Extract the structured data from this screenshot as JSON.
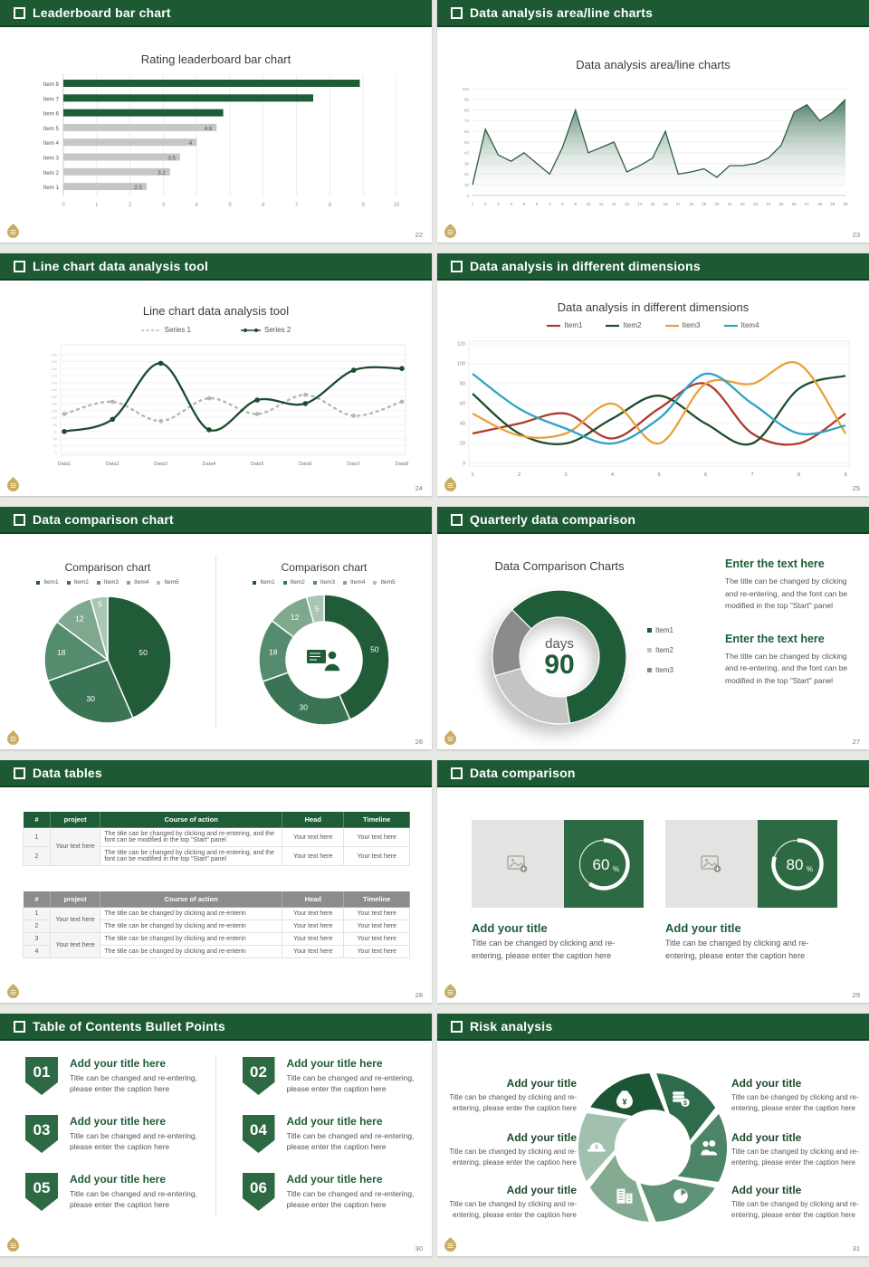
{
  "page": {
    "background": "#e8e8e5"
  },
  "theme": {
    "header_green": "#1d5a34",
    "accent_green": "#1f5c38",
    "mid_green": "#2d6a43",
    "gray_bar": "#c6c6c6",
    "gold_logo": "#c9ad62",
    "header_icon": "checkbox-square-icon"
  },
  "slides": [
    {
      "header": "Leaderboard bar chart",
      "page_number": "22",
      "chart_data": {
        "type": "bar",
        "orientation": "horizontal",
        "title": "Rating leaderboard bar chart",
        "categories": [
          "Item 1",
          "Item 2",
          "Item 3",
          "Item 4",
          "Item 5",
          "Item 6",
          "Item 7",
          "Item 8"
        ],
        "values": [
          2.5,
          3.2,
          3.5,
          4,
          4.6,
          4.8,
          7.5,
          8.9
        ],
        "value_labels": [
          "2.5",
          "3.2",
          "3.5",
          "4",
          "4.6",
          "",
          "",
          ""
        ],
        "bar_colors": [
          "#c6c6c6",
          "#c6c6c6",
          "#c6c6c6",
          "#c6c6c6",
          "#c6c6c6",
          "#1f5c38",
          "#1f5c38",
          "#1f5c38"
        ],
        "xlim": [
          0,
          10
        ],
        "xticks": [
          0,
          1,
          2,
          3,
          4,
          5,
          6,
          7,
          8,
          9,
          10
        ],
        "grid": true
      }
    },
    {
      "header": "Data analysis area/line charts",
      "page_number": "23",
      "chart_data": {
        "type": "area",
        "title": "Data analysis area/line charts",
        "x": [
          1,
          2,
          3,
          4,
          5,
          6,
          7,
          8,
          9,
          10,
          11,
          12,
          13,
          14,
          15,
          16,
          17,
          18,
          19,
          20,
          21,
          22,
          23,
          24,
          25,
          26,
          27,
          28,
          29,
          30
        ],
        "values": [
          10,
          62,
          38,
          32,
          40,
          30,
          20,
          45,
          80,
          40,
          45,
          50,
          22,
          28,
          35,
          60,
          20,
          22,
          25,
          17,
          28,
          28,
          30,
          35,
          47,
          78,
          85,
          70,
          78,
          90
        ],
        "ylim": [
          0,
          100
        ],
        "yticks": [
          0,
          10,
          20,
          30,
          40,
          50,
          60,
          70,
          80,
          90,
          100
        ],
        "line_color": "#2d5f41",
        "grid": true
      }
    },
    {
      "header": "Line chart data analysis tool",
      "page_number": "24",
      "chart_data": {
        "type": "line",
        "title": "Line chart data analysis tool",
        "categories": [
          "Data1",
          "Data2",
          "Data3",
          "Data4",
          "Data5",
          "Data6",
          "Data7",
          "Data8"
        ],
        "ylim": [
          0,
          300
        ],
        "yticks": [
          0,
          20,
          40,
          60,
          80,
          100,
          120,
          140,
          160,
          180,
          200,
          220,
          240,
          260,
          280
        ],
        "legend_position": "top",
        "series": [
          {
            "name": "Series 1",
            "color": "#b5b5b5",
            "dash": true,
            "markers": true,
            "values": [
              110,
              145,
              90,
              155,
              110,
              165,
              105,
              145
            ]
          },
          {
            "name": "Series 2",
            "color": "#1d4b2e",
            "dash": false,
            "markers": true,
            "values": [
              60,
              95,
              255,
              65,
              150,
              140,
              235,
              240
            ]
          }
        ]
      }
    },
    {
      "header": "Data analysis in different dimensions",
      "page_number": "25",
      "chart_data": {
        "type": "line",
        "title": "Data analysis in different dimensions",
        "x": [
          1,
          2,
          3,
          4,
          5,
          6,
          7,
          8,
          9
        ],
        "ylim": [
          0,
          120
        ],
        "yticks": [
          0,
          20,
          40,
          60,
          80,
          100,
          120
        ],
        "legend_position": "top",
        "series": [
          {
            "name": "Item1",
            "color": "#b03a2e",
            "values": [
              30,
              40,
              50,
              25,
              55,
              80,
              30,
              20,
              50
            ]
          },
          {
            "name": "Item2",
            "color": "#1e4d2b",
            "values": [
              70,
              30,
              20,
              45,
              68,
              40,
              20,
              75,
              88
            ]
          },
          {
            "name": "Item3",
            "color": "#e9a13b",
            "values": [
              50,
              28,
              30,
              60,
              20,
              80,
              80,
              100,
              30
            ]
          },
          {
            "name": "Item4",
            "color": "#2fa3c2",
            "values": [
              90,
              55,
              35,
              20,
              45,
              90,
              60,
              30,
              38
            ]
          }
        ]
      }
    },
    {
      "header": "Data comparison chart",
      "page_number": "26",
      "left": {
        "title": "Comparison chart",
        "chart_data": {
          "type": "pie",
          "labels": [
            "Item1",
            "Item2",
            "Item3",
            "Item4",
            "Item5"
          ],
          "values": [
            50,
            30,
            18,
            12,
            5
          ],
          "colors": [
            "#215b38",
            "#3a7454",
            "#568c6e",
            "#7fa98f",
            "#a9c5b3"
          ],
          "legend_position": "top"
        }
      },
      "right": {
        "title": "Comparison chart",
        "center_icon": "presenter-icon",
        "chart_data": {
          "type": "donut",
          "labels": [
            "Item1",
            "Item2",
            "Item3",
            "Item4",
            "Item5"
          ],
          "values": [
            50,
            30,
            18,
            12,
            5
          ],
          "colors": [
            "#215b38",
            "#3a7454",
            "#568c6e",
            "#7fa98f",
            "#a9c5b3"
          ],
          "legend_position": "top"
        }
      }
    },
    {
      "header": "Quarterly data comparison",
      "page_number": "27",
      "chart_title": "Data Comparison Charts",
      "chart_data": {
        "type": "donut",
        "labels": [
          "Item1",
          "Item2",
          "Item3"
        ],
        "values": [
          60,
          23,
          17
        ],
        "colors": [
          "#1f5c38",
          "#c4c4c4",
          "#8a8a8a"
        ],
        "center_top": "days",
        "center_value": "90",
        "legend_position": "right"
      },
      "blocks": [
        {
          "heading": "Enter the text here",
          "body": "The title can be changed by clicking and re-entering, and the font can be modified in the top \"Start\" panel"
        },
        {
          "heading": "Enter the text here",
          "body": "The title can be changed by clicking and re-entering, and the font can be modified in the top \"Start\" panel"
        }
      ]
    },
    {
      "header": "Data tables",
      "page_number": "28",
      "table1": {
        "columns": [
          "#",
          "project",
          "Course of action",
          "Head",
          "Timeline"
        ],
        "project_label": "Your text here",
        "rows": [
          {
            "num": "1",
            "course": "The title can be changed by clicking and re-entering, and the font can be modified in the top \"Start\" panel",
            "head": "Your text here",
            "timeline": "Your text here"
          },
          {
            "num": "2",
            "course": "The title can be changed by clicking and re-entering, and the font can be modified in the top \"Start\" panel",
            "head": "Your text here",
            "timeline": "Your text here"
          }
        ]
      },
      "table2": {
        "columns": [
          "#",
          "project",
          "Course of action",
          "Head",
          "Timeline"
        ],
        "project_labels": [
          "Your text here",
          "Your text here"
        ],
        "rows": [
          {
            "num": "1",
            "course": "The title can be changed by clicking and re-enterin",
            "head": "Your text here",
            "timeline": "Your text here"
          },
          {
            "num": "2",
            "course": "The title can be changed by clicking and re-enterin",
            "head": "Your text here",
            "timeline": "Your text here"
          },
          {
            "num": "3",
            "course": "The title can be changed by clicking and re-enterin",
            "head": "Your text here",
            "timeline": "Your text here"
          },
          {
            "num": "4",
            "course": "The title can be changed by clicking and re-enterin",
            "head": "Your text here",
            "timeline": "Your text here"
          }
        ]
      }
    },
    {
      "header": "Data comparison",
      "page_number": "29",
      "cards": [
        {
          "percent": 60,
          "percent_text": "60",
          "title": "Add your title",
          "caption": "Title can be changed by clicking and re-entering, please enter the caption here",
          "placeholder_icon": "image-placeholder-icon"
        },
        {
          "percent": 80,
          "percent_text": "80",
          "title": "Add your title",
          "caption": "Title can be changed by clicking and re-entering, please enter the caption here",
          "placeholder_icon": "image-placeholder-icon"
        }
      ]
    },
    {
      "header": "Table of Contents Bullet Points",
      "page_number": "30",
      "items": [
        {
          "number": "01",
          "title": "Add your title here",
          "caption": "Title can be changed and re-entering, please enter the caption here"
        },
        {
          "number": "02",
          "title": "Add your title here",
          "caption": "Title can be changed and re-entering, please enter the caption here"
        },
        {
          "number": "03",
          "title": "Add your title here",
          "caption": "Title can be changed and re-entering, please enter the caption here"
        },
        {
          "number": "04",
          "title": "Add your title here",
          "caption": "Title can be changed and re-entering, please enter the caption here"
        },
        {
          "number": "05",
          "title": "Add your title here",
          "caption": "Title can be changed and re-entering, please enter the caption here"
        },
        {
          "number": "06",
          "title": "Add your title here",
          "caption": "Title can be changed and re-entering, please enter the caption here"
        }
      ]
    },
    {
      "header": "Risk analysis",
      "page_number": "31",
      "wheel": {
        "colors": [
          "#1c5535",
          "#2e6b4a",
          "#4c8568",
          "#5f9377",
          "#84ab92",
          "#a2c0ae"
        ],
        "icons": [
          "money-bag-icon",
          "coins-icon",
          "people-icon",
          "pie-chart-icon",
          "building-icon",
          "helmet-icon"
        ]
      },
      "blocks": [
        {
          "title": "Add your title",
          "caption": "Title can be changed by clicking and re-entering, please enter the caption here"
        },
        {
          "title": "Add your title",
          "caption": "Title can be changed by clicking and re-entering, please enter the caption here"
        },
        {
          "title": "Add your title",
          "caption": "Title can be changed by clicking and re-entering, please enter the caption here"
        },
        {
          "title": "Add your title",
          "caption": "Title can be changed by clicking and re-entering, please enter the caption here"
        },
        {
          "title": "Add your title",
          "caption": "Title can be changed by clicking and re-entering, please enter the caption here"
        },
        {
          "title": "Add your title",
          "caption": "Title can be changed by clicking and re-entering, please enter the caption here"
        }
      ]
    }
  ]
}
